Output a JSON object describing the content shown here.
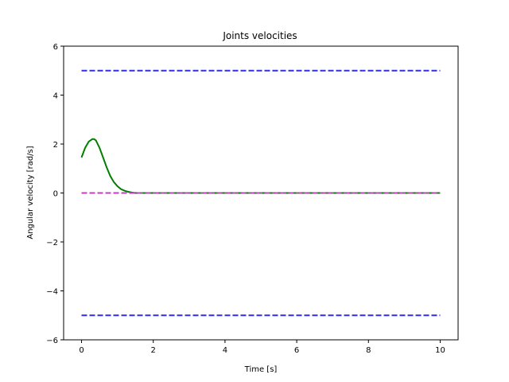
{
  "chart_data": {
    "type": "line",
    "title": "Joints velocities",
    "xlabel": "Time [s]",
    "ylabel": "Angular velocity [rad/s]",
    "xlim": [
      -0.5,
      10.5
    ],
    "ylim": [
      -6,
      6
    ],
    "xticks": [
      0,
      2,
      4,
      6,
      8,
      10
    ],
    "yticks": [
      -6,
      -4,
      -2,
      0,
      2,
      4,
      6
    ],
    "xtick_labels": [
      "0",
      "2",
      "4",
      "6",
      "8",
      "10"
    ],
    "ytick_labels": [
      "−6",
      "−4",
      "−2",
      "0",
      "2",
      "4",
      "6"
    ],
    "grid": false,
    "series": [
      {
        "color": "#008000",
        "style": "solid",
        "x": [
          0,
          0.1,
          0.2,
          0.3,
          0.35,
          0.4,
          0.5,
          0.6,
          0.7,
          0.8,
          0.9,
          1.0,
          1.1,
          1.2,
          1.3,
          1.4,
          1.5,
          2,
          3,
          4,
          5,
          6,
          7,
          8,
          9,
          10
        ],
        "y": [
          1.45,
          1.85,
          2.1,
          2.2,
          2.2,
          2.15,
          1.85,
          1.45,
          1.05,
          0.7,
          0.45,
          0.28,
          0.16,
          0.09,
          0.05,
          0.02,
          0.0,
          0.0,
          0.0,
          0.0,
          0.0,
          0.0,
          0.0,
          0.0,
          0.0,
          0.0
        ]
      },
      {
        "color": "#c040c0",
        "style": "dashed",
        "x": [
          0,
          10
        ],
        "y": [
          0,
          0
        ]
      },
      {
        "color": "#3030e0",
        "style": "dashed",
        "x": [
          0,
          10
        ],
        "y": [
          5,
          5
        ]
      },
      {
        "color": "#3030e0",
        "style": "dashed",
        "x": [
          0,
          10
        ],
        "y": [
          -5,
          -5
        ]
      },
      {
        "color": "#606060",
        "style": "dotted",
        "x": [
          1.5,
          10
        ],
        "y": [
          0,
          0
        ]
      }
    ]
  }
}
